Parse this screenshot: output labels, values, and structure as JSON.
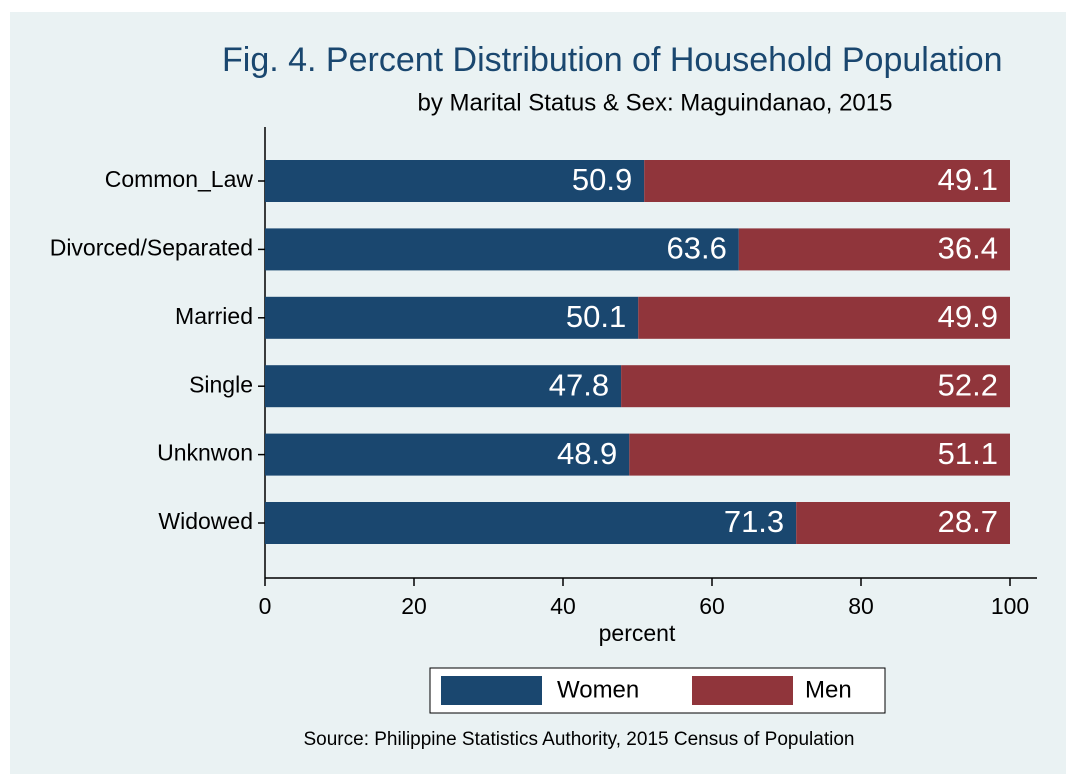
{
  "chart_data": {
    "type": "bar",
    "orientation": "horizontal",
    "stacked": true,
    "title": "Fig. 4. Percent Distribution of Household Population",
    "subtitle": "by Marital Status & Sex: Maguindanao, 2015",
    "x_label": "percent",
    "source": "Source: Philippine Statistics Authority, 2015 Census of Population",
    "categories": [
      "Common_Law",
      "Divorced/Separated",
      "Married",
      "Single",
      "Unknwon",
      "Widowed"
    ],
    "series": [
      {
        "name": "Women",
        "color": "#1a476f",
        "values": [
          50.9,
          63.6,
          50.1,
          47.8,
          48.9,
          71.3
        ]
      },
      {
        "name": "Men",
        "color": "#90353b",
        "values": [
          49.1,
          36.4,
          49.9,
          52.2,
          51.1,
          28.7
        ]
      }
    ],
    "xlim": [
      0,
      100
    ],
    "xticks": [
      0,
      20,
      40,
      60,
      80,
      100
    ]
  }
}
